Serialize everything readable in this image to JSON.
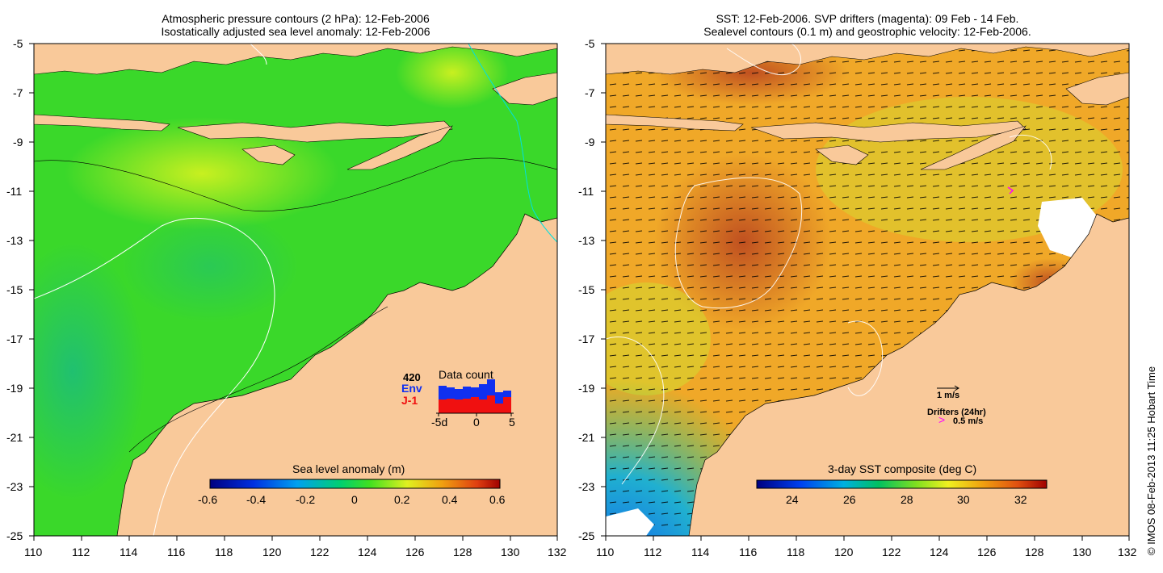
{
  "left_panel": {
    "title_line1": "Atmospheric pressure contours (2 hPa): 12-Feb-2006",
    "title_line2": "Isostatically adjusted sea level anomaly: 12-Feb-2006",
    "colorbar": {
      "title": "Sea level anomaly (m)",
      "ticks": [
        "-0.6",
        "-0.4",
        "-0.2",
        "0",
        "0.2",
        "0.4",
        "0.6"
      ]
    },
    "data_count": {
      "title": "Data count",
      "max_label": "420",
      "env_label": "Env",
      "j1_label": "J-1",
      "x_ticks": [
        "-5d",
        "0",
        "5"
      ]
    }
  },
  "right_panel": {
    "title_line1": "SST: 12-Feb-2006. SVP drifters (magenta): 09 Feb - 14 Feb.",
    "title_line2": "Sealevel contours (0.1 m) and geostrophic velocity: 12-Feb-2006.",
    "colorbar": {
      "title": "3-day SST composite (deg C)",
      "ticks": [
        "24",
        "26",
        "28",
        "30",
        "32"
      ]
    },
    "velocity_legend": "1 m/s",
    "drifter_legend": "Drifters (24hr)",
    "drifter_speed": "0.5 m/s",
    "drifter_symbol": ">"
  },
  "axes": {
    "x_ticks": [
      "110",
      "112",
      "114",
      "116",
      "118",
      "120",
      "122",
      "124",
      "126",
      "128",
      "130",
      "132"
    ],
    "y_ticks": [
      "-5",
      "-7",
      "-9",
      "-11",
      "-13",
      "-15",
      "-17",
      "-19",
      "-21",
      "-23",
      "-25"
    ]
  },
  "credit": "© IMOS 08-Feb-2013 11:25 Hobart Time",
  "colors": {
    "land": "#f9c99a",
    "sla_ocean": "#33dd22",
    "sst_ocean": "#f0a020",
    "env_bar": "#1030f0",
    "j1_bar": "#f01010",
    "drifter": "#ff00ff"
  },
  "map_extent": {
    "lon": [
      110,
      132
    ],
    "lat": [
      -25,
      -5
    ]
  }
}
